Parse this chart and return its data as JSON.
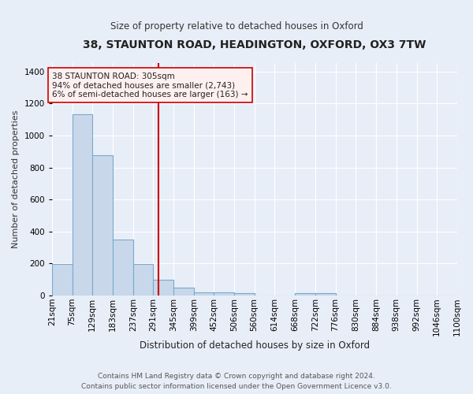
{
  "title": "38, STAUNTON ROAD, HEADINGTON, OXFORD, OX3 7TW",
  "subtitle": "Size of property relative to detached houses in Oxford",
  "xlabel": "Distribution of detached houses by size in Oxford",
  "ylabel": "Number of detached properties",
  "footer_line1": "Contains HM Land Registry data © Crown copyright and database right 2024.",
  "footer_line2": "Contains public sector information licensed under the Open Government Licence v3.0.",
  "bin_labels": [
    "21sqm",
    "75sqm",
    "129sqm",
    "183sqm",
    "237sqm",
    "291sqm",
    "345sqm",
    "399sqm",
    "452sqm",
    "506sqm",
    "560sqm",
    "614sqm",
    "668sqm",
    "722sqm",
    "776sqm",
    "830sqm",
    "884sqm",
    "938sqm",
    "992sqm",
    "1046sqm",
    "1100sqm"
  ],
  "bar_values": [
    196,
    1130,
    878,
    352,
    196,
    98,
    50,
    20,
    18,
    15,
    0,
    0,
    14,
    14,
    0,
    0,
    0,
    0,
    0,
    0
  ],
  "bar_color": "#c8d8ea",
  "bar_edge_color": "#7aaacb",
  "property_line_x": 305,
  "property_label": "38 STAUNTON ROAD: 305sqm",
  "annotation_line1": "94% of detached houses are smaller (2,743)",
  "annotation_line2": "6% of semi-detached houses are larger (163) →",
  "vline_color": "#cc0000",
  "annotation_box_facecolor": "#fff0f0",
  "annotation_box_edgecolor": "#cc0000",
  "ylim": [
    0,
    1450
  ],
  "yticks": [
    0,
    200,
    400,
    600,
    800,
    1000,
    1200,
    1400
  ],
  "background_color": "#e8eef8",
  "grid_color": "#ffffff",
  "title_fontsize": 10,
  "subtitle_fontsize": 8.5,
  "ylabel_fontsize": 8,
  "xlabel_fontsize": 8.5,
  "tick_fontsize": 7.5,
  "annotation_fontsize": 7.5,
  "footer_fontsize": 6.5
}
